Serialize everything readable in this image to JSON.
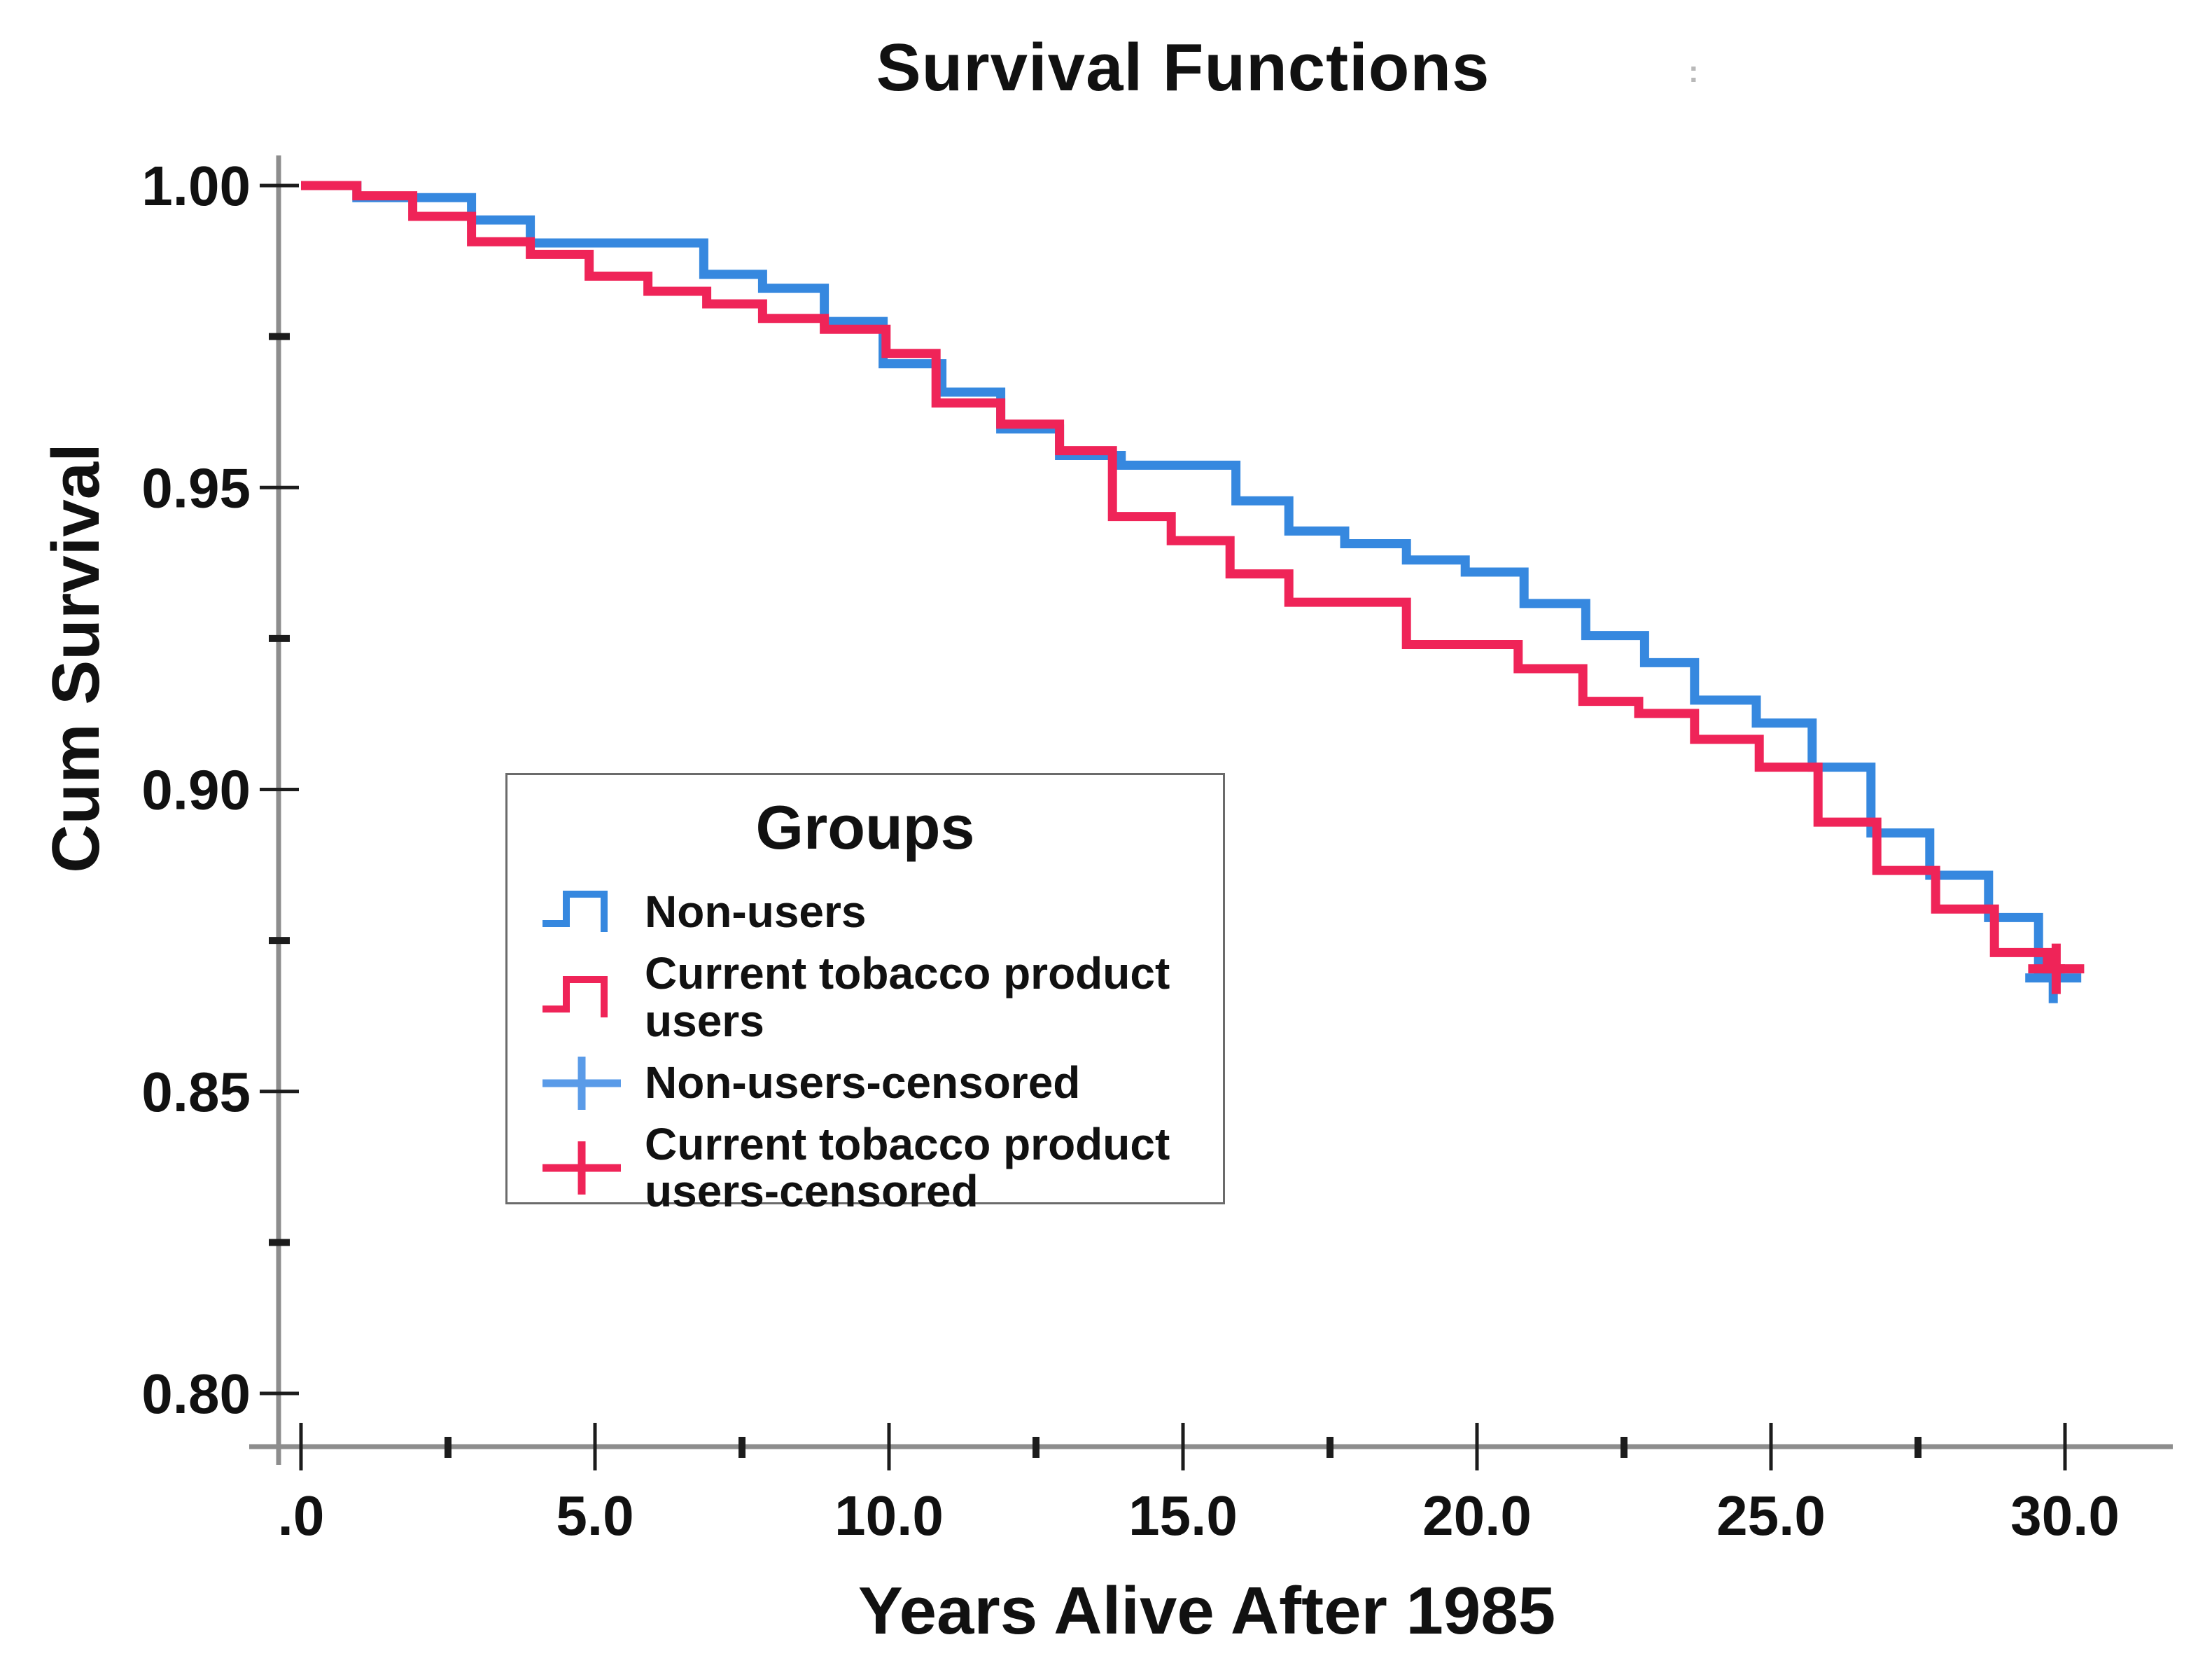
{
  "title": "Survival Functions",
  "title_artifact": ":",
  "legend": {
    "title": "Groups",
    "entries": [
      {
        "label": "Non-users",
        "marker": "step",
        "color": "#3688df",
        "series": "non_users"
      },
      {
        "label": "Current tobacco product\nusers",
        "marker": "step",
        "color": "#ef2458",
        "series": "current_users"
      },
      {
        "label": "Non-users-censored",
        "marker": "plus",
        "color": "#5a9be8",
        "series": "non_users_censored"
      },
      {
        "label": "Current tobacco product\nusers-censored",
        "marker": "plus",
        "color": "#ef2458",
        "series": "current_users_censored"
      }
    ]
  },
  "colors": {
    "non_users": "#3688df",
    "current_users": "#ef2458",
    "axis_line": "#8d8d8d",
    "tick": "#1c1c1c",
    "text": "#111111"
  },
  "chart_data": {
    "type": "line",
    "subtype": "kaplan-meier-step",
    "title": "Survival Functions",
    "xlabel": "Years Alive After 1985",
    "ylabel": "Cum Survival",
    "xlim": [
      0,
      31.8
    ],
    "ylim": [
      0.788,
      1.005
    ],
    "grid": false,
    "legend_position": "inside-left-middle",
    "x_ticks": [
      {
        "value": 0,
        "label": ".0"
      },
      {
        "value": 5,
        "label": "5.0"
      },
      {
        "value": 10,
        "label": "10.0"
      },
      {
        "value": 15,
        "label": "15.0"
      },
      {
        "value": 20,
        "label": "20.0"
      },
      {
        "value": 25,
        "label": "25.0"
      },
      {
        "value": 30,
        "label": "30.0"
      }
    ],
    "x_minor_ticks": [
      2.5,
      7.5,
      12.5,
      17.5,
      22.5,
      27.5
    ],
    "y_ticks": [
      {
        "value": 1.0,
        "label": "1.00"
      },
      {
        "value": 0.95,
        "label": "0.95"
      },
      {
        "value": 0.9,
        "label": "0.90"
      },
      {
        "value": 0.85,
        "label": "0.85"
      },
      {
        "value": 0.8,
        "label": "0.80"
      }
    ],
    "y_minor_ticks": [
      0.975,
      0.925,
      0.875,
      0.825
    ],
    "series": [
      {
        "name": "Non-users",
        "key": "non_users",
        "color": "#3688df",
        "step_points": [
          [
            0,
            1.0
          ],
          [
            0.95,
            0.998
          ],
          [
            2.9,
            0.9943
          ],
          [
            3.9,
            0.9905
          ],
          [
            6.85,
            0.9853
          ],
          [
            7.85,
            0.983
          ],
          [
            8.9,
            0.9775
          ],
          [
            9.9,
            0.9705
          ],
          [
            10.9,
            0.9658
          ],
          [
            11.9,
            0.9597
          ],
          [
            12.9,
            0.9553
          ],
          [
            13.95,
            0.9537
          ],
          [
            15.9,
            0.9478
          ],
          [
            16.8,
            0.9428
          ],
          [
            17.75,
            0.9407
          ],
          [
            18.8,
            0.938
          ],
          [
            19.8,
            0.936
          ],
          [
            20.8,
            0.9308
          ],
          [
            21.85,
            0.9255
          ],
          [
            22.85,
            0.921
          ],
          [
            23.7,
            0.9148
          ],
          [
            24.75,
            0.911
          ],
          [
            25.7,
            0.9037
          ],
          [
            26.7,
            0.8928
          ],
          [
            27.7,
            0.8858
          ],
          [
            28.7,
            0.8788
          ],
          [
            29.55,
            0.8692
          ]
        ],
        "end_time": 29.95,
        "censored": [
          [
            29.8,
            0.8688
          ]
        ]
      },
      {
        "name": "Current tobacco product users",
        "key": "current_users",
        "color": "#ef2458",
        "step_points": [
          [
            0,
            1.0
          ],
          [
            0.95,
            0.9983
          ],
          [
            1.9,
            0.9949
          ],
          [
            2.9,
            0.9907
          ],
          [
            3.9,
            0.9886
          ],
          [
            4.9,
            0.985
          ],
          [
            5.9,
            0.9825
          ],
          [
            6.9,
            0.9804
          ],
          [
            7.85,
            0.978
          ],
          [
            8.9,
            0.9762
          ],
          [
            9.95,
            0.9722
          ],
          [
            10.8,
            0.964
          ],
          [
            11.9,
            0.9605
          ],
          [
            12.9,
            0.9561
          ],
          [
            13.8,
            0.9452
          ],
          [
            14.8,
            0.9412
          ],
          [
            15.8,
            0.9357
          ],
          [
            16.8,
            0.931
          ],
          [
            18.8,
            0.924
          ],
          [
            20.7,
            0.92
          ],
          [
            21.8,
            0.9146
          ],
          [
            22.75,
            0.9126
          ],
          [
            23.7,
            0.9083
          ],
          [
            24.8,
            0.9037
          ],
          [
            25.8,
            0.8946
          ],
          [
            26.8,
            0.8866
          ],
          [
            27.8,
            0.8802
          ],
          [
            28.8,
            0.873
          ],
          [
            29.7,
            0.8703
          ]
        ],
        "end_time": 30.0,
        "censored": [
          [
            29.85,
            0.8703
          ]
        ]
      }
    ]
  }
}
